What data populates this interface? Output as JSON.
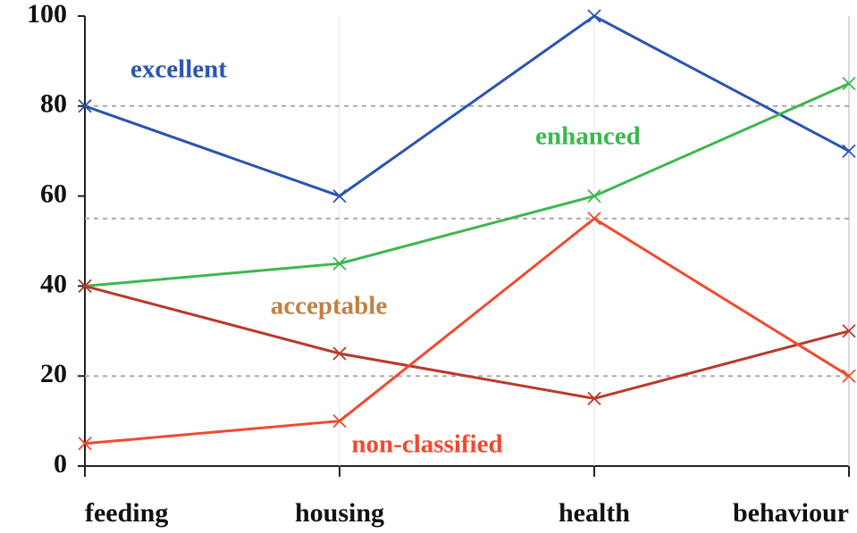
{
  "chart_data": {
    "type": "line",
    "categories": [
      "feeding",
      "housing",
      "health",
      "behaviour"
    ],
    "series": [
      {
        "name": "excellent",
        "color": "#2a55b0",
        "label_color": "#2a55b0",
        "values": [
          80,
          60,
          100,
          70
        ]
      },
      {
        "name": "enhanced",
        "color": "#3cb84e",
        "label_color": "#3cb84e",
        "values": [
          40,
          45,
          60,
          85
        ]
      },
      {
        "name": "acceptable",
        "color": "#b83a2a",
        "label_color": "#c08045",
        "values": [
          40,
          25,
          15,
          30
        ]
      },
      {
        "name": "non-classified",
        "color": "#f04a30",
        "label_color": "#f04a30",
        "values": [
          5,
          10,
          55,
          20
        ]
      }
    ],
    "ylim": [
      0,
      100
    ],
    "yticks": [
      0,
      20,
      40,
      60,
      80,
      100
    ],
    "reference_lines": [
      20,
      55,
      80
    ]
  }
}
